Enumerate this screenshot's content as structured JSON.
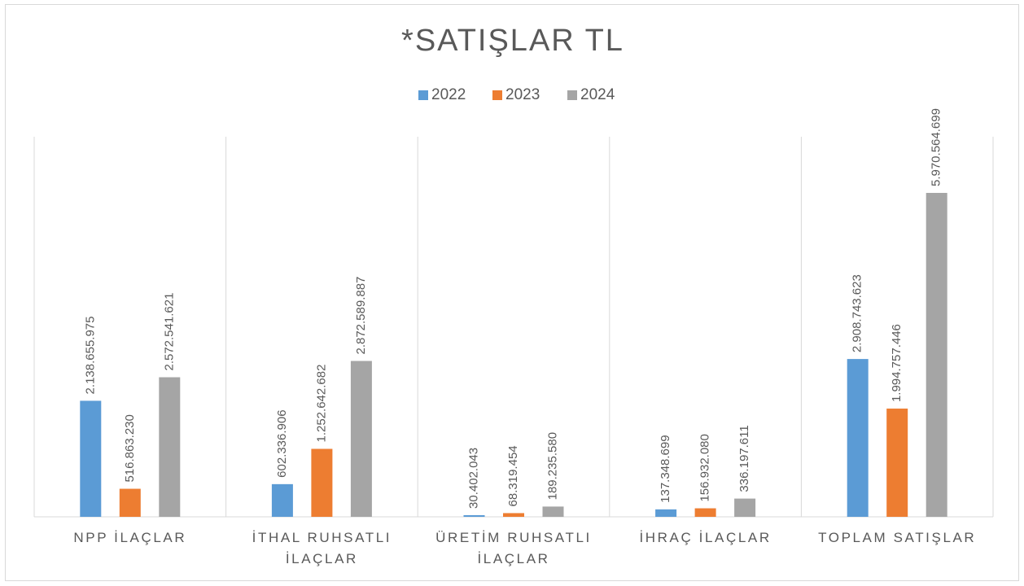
{
  "chart_data": {
    "type": "bar",
    "title": "*SATIŞLAR TL",
    "categories": [
      "NPP İLAÇLAR",
      "İTHAL RUHSATLI İLAÇLAR",
      "ÜRETİM RUHSATLI İLAÇLAR",
      "İHRAÇ İLAÇLAR",
      "TOPLAM SATIŞLAR"
    ],
    "series": [
      {
        "name": "2022",
        "color": "#5b9bd5",
        "values": [
          2138655975,
          602336906,
          30402043,
          137348699,
          2908743623
        ],
        "value_labels": [
          "2.138.655.975",
          "602.336.906",
          "30.402.043",
          "137.348.699",
          "2.908.743.623"
        ]
      },
      {
        "name": "2023",
        "color": "#ed7d31",
        "values": [
          516863230,
          1252642682,
          68319454,
          156932080,
          1994757446
        ],
        "value_labels": [
          "516.863.230",
          "1.252.642.682",
          "68.319.454",
          "156.932.080",
          "1.994.757.446"
        ]
      },
      {
        "name": "2024",
        "color": "#a5a5a5",
        "values": [
          2572541621,
          2872589887,
          189235580,
          336197611,
          5970564699
        ],
        "value_labels": [
          "2.572.541.621",
          "2.872.589.887",
          "189.235.580",
          "336.197.611",
          "5.970.564.699"
        ]
      }
    ],
    "legend": "top"
  }
}
